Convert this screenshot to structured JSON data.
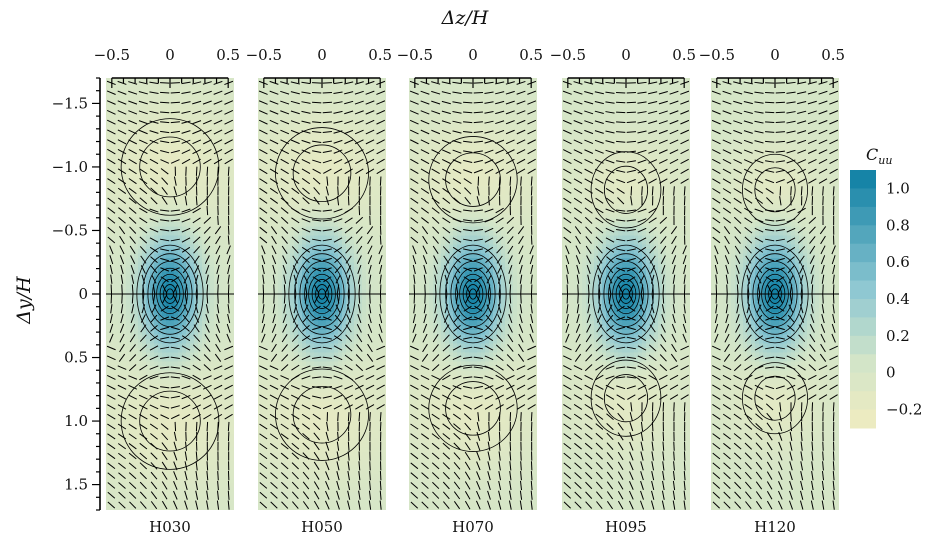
{
  "chart_data": {
    "type": "heatmap",
    "title": "",
    "xlabel": "Δz/H",
    "ylabel": "Δy/H",
    "xlim": [
      -0.55,
      0.55
    ],
    "ylim": [
      -1.7,
      1.7
    ],
    "y_inverted": true,
    "x_tick_labels": [
      "−0.5",
      "0",
      "0.5"
    ],
    "x_ticks": [
      -0.5,
      0,
      0.5
    ],
    "y_tick_labels": [
      "−1.5",
      "−1.0",
      "−0.5",
      "0",
      "0.5",
      "1.0",
      "1.5"
    ],
    "y_ticks": [
      -1.5,
      -1.0,
      -0.5,
      0,
      0.5,
      1.0,
      1.5
    ],
    "panels": [
      {
        "label": "H030",
        "center_peak": 1.0,
        "lobe_min": -0.22,
        "lobe_y": 1.0,
        "lobe_half_width": 0.42,
        "lobe_half_height": 0.38
      },
      {
        "label": "H050",
        "center_peak": 1.0,
        "lobe_min": -0.22,
        "lobe_y": 0.95,
        "lobe_half_width": 0.4,
        "lobe_half_height": 0.36
      },
      {
        "label": "H070",
        "center_peak": 1.0,
        "lobe_min": -0.22,
        "lobe_y": 0.9,
        "lobe_half_width": 0.38,
        "lobe_half_height": 0.34
      },
      {
        "label": "H095",
        "center_peak": 1.0,
        "lobe_min": -0.2,
        "lobe_y": 0.82,
        "lobe_half_width": 0.3,
        "lobe_half_height": 0.3
      },
      {
        "label": "H120",
        "center_peak": 1.0,
        "lobe_min": -0.2,
        "lobe_y": 0.82,
        "lobe_half_width": 0.28,
        "lobe_half_height": 0.28
      }
    ],
    "colorbar": {
      "label": "C",
      "label_subscript": "uu",
      "min": -0.3,
      "max": 1.1,
      "tick_values": [
        1.0,
        0.8,
        0.6,
        0.4,
        0.2,
        0,
        -0.2
      ],
      "tick_labels": [
        "1.0",
        "0.8",
        "0.6",
        "0.4",
        "0.2",
        "0",
        "−0.2"
      ]
    },
    "colors": {
      "low": "#f0ecc0",
      "mid_low": "#d3e5c8",
      "mid": "#8fc8d2",
      "high": "#0c7ea3",
      "contour": "#000000",
      "vector": "#000000"
    }
  }
}
